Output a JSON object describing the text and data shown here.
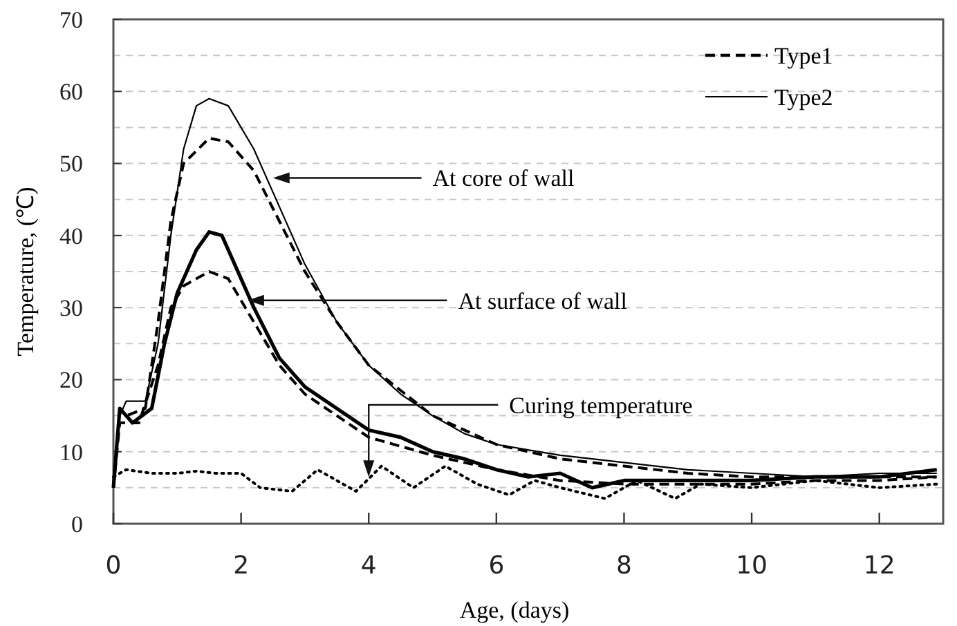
{
  "chart_data": {
    "type": "line",
    "xlabel": "Age, (days)",
    "ylabel": "Temperature, (℃)",
    "xlim": [
      0,
      13
    ],
    "xticks": [
      0,
      2,
      4,
      6,
      8,
      10,
      12
    ],
    "ylim": [
      0,
      70
    ],
    "yticks": [
      0,
      {
        "value": 5,
        "label": null
      },
      10,
      {
        "value": 15,
        "label": null
      },
      20,
      {
        "value": 25,
        "label": null
      },
      30,
      {
        "value": 35,
        "label": null
      },
      40,
      {
        "value": 45,
        "label": null
      },
      50,
      {
        "value": 55,
        "label": null
      },
      60,
      {
        "value": 65,
        "label": null
      },
      70
    ],
    "grid": "y",
    "legend": "top right",
    "marker": "none",
    "series": [
      {
        "name": "Type1",
        "color": "#000000",
        "line_style": "dashed",
        "x": [
          0,
          0.1,
          0.2,
          0.5,
          0.7,
          0.9,
          1.1,
          1.5,
          1.8,
          2.2,
          2.6,
          3,
          3.5,
          4,
          5,
          6,
          7,
          8,
          9,
          10,
          11,
          12,
          12.9
        ],
        "values": [
          5,
          16,
          15,
          16,
          28,
          42,
          50,
          53.5,
          53,
          49,
          42,
          35,
          28,
          22,
          15,
          11,
          9,
          8,
          7,
          6.5,
          6.5,
          6.5,
          6.5
        ]
      },
      {
        "name": "Type2",
        "color": "#000000",
        "line_style": "solid",
        "x": [
          0,
          0.1,
          0.2,
          0.5,
          0.7,
          0.9,
          1.1,
          1.3,
          1.5,
          1.8,
          2.2,
          2.6,
          3,
          3.5,
          4,
          4.5,
          5,
          5.5,
          6,
          7,
          8,
          9,
          10,
          11,
          12,
          12.9
        ],
        "values": [
          5,
          15,
          17,
          17,
          25,
          40,
          52,
          58,
          59,
          58,
          52,
          44,
          36,
          28,
          22,
          18,
          15,
          12.5,
          11,
          9.5,
          8.5,
          7.5,
          7,
          6.5,
          7,
          7
        ]
      },
      {
        "color": "#000000",
        "line_style": "dashed",
        "x": [
          0,
          0.1,
          0.4,
          0.7,
          0.9,
          1.1,
          1.5,
          1.8,
          2.2,
          2.6,
          3,
          3.5,
          4,
          5,
          6,
          7,
          8,
          9,
          10,
          11,
          12,
          12.9
        ],
        "values": [
          5,
          14,
          14,
          22,
          30,
          33,
          35,
          34,
          28,
          22,
          18,
          15,
          12,
          9.5,
          7.5,
          6,
          5.5,
          5.5,
          5.5,
          6,
          6,
          6.5
        ]
      },
      {
        "color": "#000000",
        "line_style": "solid",
        "x": [
          0,
          0.1,
          0.3,
          0.6,
          0.8,
          1,
          1.3,
          1.5,
          1.7,
          1.9,
          2.2,
          2.6,
          3,
          3.5,
          4,
          4.5,
          5,
          5.5,
          6,
          6.5,
          7,
          7.5,
          8,
          9,
          10,
          11,
          12,
          12.9
        ],
        "values": [
          5,
          16,
          14,
          16,
          25,
          32,
          38,
          40.5,
          40,
          36,
          30,
          23,
          19,
          16,
          13,
          12,
          10,
          9,
          7.5,
          6.5,
          7,
          5,
          6,
          6,
          6,
          6.5,
          6.5,
          7.5
        ]
      },
      {
        "color": "#000000",
        "line_style": "dotted",
        "x": [
          0,
          0.2,
          0.6,
          1,
          1.3,
          1.6,
          2,
          2.3,
          2.8,
          3.2,
          3.5,
          3.8,
          4.2,
          4.7,
          5.2,
          5.7,
          6.2,
          6.6,
          7,
          7.7,
          8.2,
          8.8,
          9.2,
          10,
          11,
          12,
          12.9
        ],
        "values": [
          6.5,
          7.5,
          7,
          7,
          7.3,
          7,
          7,
          5,
          4.5,
          7.5,
          6,
          4.5,
          8,
          5,
          8,
          5.5,
          4,
          6,
          5,
          3.5,
          6,
          3.5,
          5.5,
          5,
          6,
          5,
          5.5
        ]
      }
    ],
    "annotations": [
      {
        "text": "At core of wall",
        "x": 2.5,
        "y": 48
      },
      {
        "text": "At surface of wall",
        "x": 2.1,
        "y": 31
      },
      {
        "text": "Curing temperature",
        "x": 4,
        "y": 6.5
      }
    ]
  }
}
